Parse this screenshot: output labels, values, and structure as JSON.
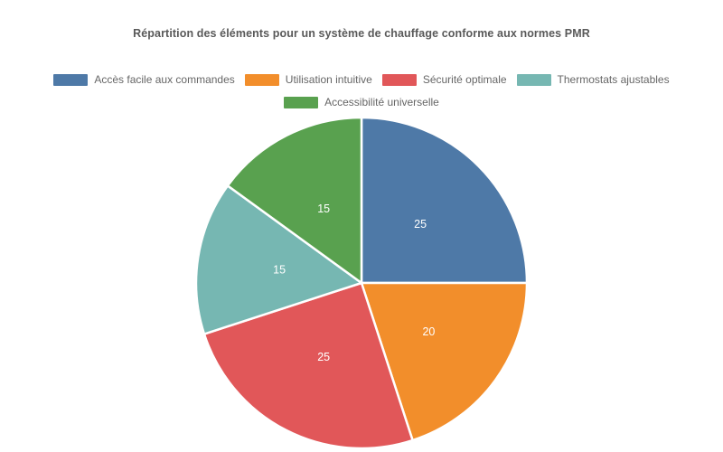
{
  "title": "Répartition des éléments pour un système de chauffage conforme aux normes PMR",
  "chart_data": {
    "type": "pie",
    "title": "Répartition des éléments pour un système de chauffage conforme aux normes PMR",
    "labels": [
      "Accès facile aux commandes",
      "Utilisation intuitive",
      "Sécurité optimale",
      "Thermostats ajustables",
      "Accessibilité universelle"
    ],
    "values": [
      25,
      20,
      25,
      15,
      15
    ],
    "slice_value_labels": [
      "25",
      "20",
      "25",
      "15",
      "15"
    ],
    "colors": [
      "#4E79A7",
      "#F28E2B",
      "#E15759",
      "#76B7B2",
      "#59A14F"
    ],
    "start_angle": "top",
    "direction": "clockwise",
    "slice_border_color": "#FFFFFF",
    "slice_label_color": "#FFFFFF",
    "title_color": "#595959",
    "legend_text_color": "#666666",
    "legend_position": "top",
    "legend_rows": [
      [
        0,
        1,
        2,
        3
      ],
      [
        4
      ]
    ]
  }
}
